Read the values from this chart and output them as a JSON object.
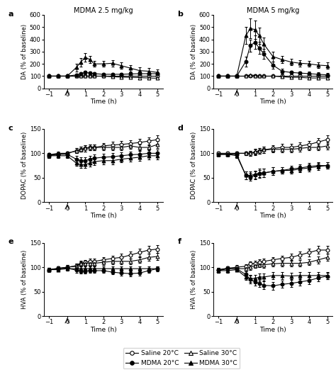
{
  "title_a": "MDMA 2.5 mg/kg",
  "title_b": "MDMA 5 mg/kg",
  "time_points": [
    -1,
    -0.5,
    0,
    0.5,
    0.75,
    1.0,
    1.25,
    1.5,
    2.0,
    2.5,
    3.0,
    3.5,
    4.0,
    4.5,
    5.0
  ],
  "panel_a": {
    "saline_20": [
      100,
      100,
      100,
      100,
      100,
      100,
      100,
      100,
      100,
      100,
      100,
      100,
      100,
      100,
      100
    ],
    "saline_20_err": [
      4,
      4,
      4,
      4,
      4,
      4,
      4,
      4,
      4,
      4,
      4,
      4,
      4,
      4,
      4
    ],
    "saline_30": [
      100,
      100,
      100,
      100,
      100,
      100,
      100,
      100,
      100,
      95,
      92,
      90,
      88,
      85,
      83
    ],
    "saline_30_err": [
      5,
      5,
      5,
      5,
      5,
      5,
      5,
      5,
      5,
      6,
      6,
      6,
      6,
      6,
      6
    ],
    "mdma_20": [
      100,
      100,
      100,
      110,
      120,
      130,
      125,
      120,
      115,
      115,
      115,
      118,
      120,
      120,
      120
    ],
    "mdma_20_err": [
      5,
      5,
      5,
      10,
      12,
      15,
      14,
      13,
      12,
      12,
      12,
      12,
      13,
      13,
      13
    ],
    "mdma_30": [
      100,
      100,
      100,
      170,
      215,
      255,
      235,
      200,
      200,
      205,
      185,
      165,
      145,
      140,
      130
    ],
    "mdma_30_err": [
      5,
      5,
      5,
      30,
      35,
      35,
      30,
      25,
      25,
      25,
      25,
      25,
      25,
      25,
      25
    ]
  },
  "panel_b": {
    "saline_20": [
      100,
      100,
      100,
      100,
      100,
      100,
      100,
      100,
      100,
      100,
      100,
      100,
      100,
      100,
      100
    ],
    "saline_20_err": [
      4,
      4,
      4,
      4,
      4,
      4,
      4,
      4,
      4,
      4,
      4,
      4,
      4,
      4,
      4
    ],
    "saline_30": [
      100,
      100,
      100,
      100,
      110,
      105,
      100,
      100,
      100,
      95,
      90,
      90,
      85,
      85,
      85
    ],
    "saline_30_err": [
      5,
      5,
      5,
      5,
      5,
      8,
      8,
      8,
      8,
      8,
      8,
      8,
      8,
      8,
      8
    ],
    "mdma_20": [
      100,
      100,
      100,
      220,
      350,
      375,
      330,
      280,
      190,
      140,
      130,
      125,
      120,
      115,
      110
    ],
    "mdma_20_err": [
      5,
      5,
      5,
      40,
      50,
      55,
      50,
      40,
      30,
      20,
      15,
      15,
      15,
      15,
      15
    ],
    "mdma_30": [
      100,
      100,
      100,
      430,
      490,
      480,
      430,
      360,
      260,
      235,
      215,
      205,
      200,
      190,
      185
    ],
    "mdma_30_err": [
      5,
      5,
      5,
      70,
      80,
      75,
      65,
      55,
      40,
      30,
      25,
      25,
      25,
      25,
      25
    ]
  },
  "panel_c": {
    "saline_20": [
      95,
      98,
      100,
      105,
      108,
      110,
      112,
      112,
      115,
      117,
      118,
      120,
      122,
      125,
      128
    ],
    "saline_20_err": [
      4,
      4,
      4,
      5,
      5,
      6,
      6,
      6,
      6,
      7,
      7,
      7,
      8,
      8,
      8
    ],
    "saline_30": [
      97,
      100,
      100,
      105,
      108,
      110,
      112,
      112,
      112,
      112,
      112,
      115,
      112,
      112,
      118
    ],
    "saline_30_err": [
      4,
      4,
      4,
      5,
      5,
      6,
      6,
      6,
      6,
      6,
      6,
      6,
      6,
      6,
      7
    ],
    "mdma_20": [
      97,
      98,
      98,
      88,
      85,
      85,
      88,
      90,
      92,
      93,
      95,
      97,
      98,
      100,
      100
    ],
    "mdma_20_err": [
      4,
      4,
      4,
      6,
      7,
      7,
      7,
      7,
      7,
      7,
      7,
      7,
      7,
      7,
      7
    ],
    "mdma_30": [
      95,
      95,
      95,
      80,
      77,
      77,
      80,
      83,
      85,
      85,
      88,
      90,
      92,
      95,
      95
    ],
    "mdma_30_err": [
      4,
      4,
      4,
      6,
      7,
      7,
      7,
      7,
      7,
      7,
      7,
      7,
      7,
      7,
      7
    ]
  },
  "panel_d": {
    "saline_20": [
      100,
      100,
      100,
      100,
      100,
      102,
      105,
      107,
      110,
      112,
      112,
      115,
      118,
      123,
      128
    ],
    "saline_20_err": [
      4,
      4,
      4,
      4,
      5,
      6,
      6,
      6,
      6,
      7,
      7,
      7,
      7,
      8,
      9
    ],
    "saline_30": [
      98,
      98,
      100,
      100,
      100,
      103,
      105,
      107,
      108,
      108,
      108,
      110,
      112,
      112,
      115
    ],
    "saline_30_err": [
      4,
      4,
      4,
      4,
      5,
      6,
      6,
      6,
      6,
      6,
      6,
      6,
      6,
      6,
      7
    ],
    "mdma_20": [
      98,
      98,
      98,
      55,
      52,
      55,
      58,
      60,
      63,
      65,
      68,
      70,
      73,
      75,
      75
    ],
    "mdma_20_err": [
      4,
      4,
      4,
      8,
      8,
      8,
      8,
      8,
      8,
      7,
      7,
      7,
      7,
      7,
      7
    ],
    "mdma_30": [
      98,
      98,
      95,
      55,
      55,
      57,
      60,
      60,
      63,
      65,
      65,
      68,
      70,
      73,
      75
    ],
    "mdma_30_err": [
      4,
      4,
      4,
      8,
      8,
      8,
      8,
      8,
      8,
      7,
      7,
      7,
      7,
      7,
      7
    ]
  },
  "panel_e": {
    "saline_20": [
      95,
      98,
      100,
      103,
      108,
      110,
      112,
      112,
      115,
      118,
      120,
      125,
      130,
      135,
      137
    ],
    "saline_20_err": [
      4,
      4,
      4,
      4,
      5,
      5,
      6,
      6,
      6,
      6,
      7,
      7,
      8,
      8,
      8
    ],
    "saline_30": [
      95,
      97,
      100,
      102,
      107,
      108,
      108,
      108,
      110,
      112,
      112,
      112,
      115,
      120,
      122
    ],
    "saline_30_err": [
      4,
      4,
      4,
      5,
      5,
      5,
      5,
      5,
      6,
      6,
      6,
      6,
      6,
      7,
      7
    ],
    "mdma_20": [
      95,
      97,
      98,
      94,
      92,
      92,
      93,
      93,
      93,
      90,
      88,
      87,
      88,
      93,
      97
    ],
    "mdma_20_err": [
      4,
      4,
      4,
      5,
      5,
      5,
      5,
      5,
      5,
      5,
      5,
      5,
      5,
      5,
      5
    ],
    "mdma_30": [
      95,
      95,
      97,
      97,
      97,
      97,
      97,
      97,
      97,
      97,
      97,
      97,
      97,
      97,
      97
    ],
    "mdma_30_err": [
      4,
      4,
      4,
      4,
      4,
      4,
      4,
      4,
      4,
      4,
      4,
      4,
      4,
      4,
      4
    ]
  },
  "panel_f": {
    "saline_20": [
      95,
      98,
      100,
      102,
      107,
      108,
      110,
      112,
      115,
      118,
      120,
      125,
      130,
      135,
      135
    ],
    "saline_20_err": [
      4,
      4,
      4,
      4,
      5,
      5,
      6,
      6,
      6,
      6,
      7,
      7,
      8,
      8,
      8
    ],
    "saline_30": [
      93,
      97,
      97,
      97,
      100,
      103,
      105,
      105,
      107,
      108,
      108,
      108,
      110,
      115,
      120
    ],
    "saline_30_err": [
      4,
      4,
      4,
      5,
      5,
      5,
      5,
      6,
      6,
      6,
      6,
      6,
      6,
      7,
      7
    ],
    "mdma_20": [
      95,
      97,
      97,
      85,
      75,
      70,
      67,
      63,
      62,
      65,
      67,
      70,
      73,
      78,
      82
    ],
    "mdma_20_err": [
      4,
      4,
      4,
      7,
      8,
      8,
      8,
      8,
      8,
      7,
      7,
      7,
      7,
      7,
      7
    ],
    "mdma_30": [
      93,
      93,
      95,
      80,
      77,
      77,
      80,
      80,
      83,
      83,
      82,
      83,
      83,
      83,
      83
    ],
    "mdma_30_err": [
      4,
      4,
      4,
      6,
      7,
      7,
      7,
      7,
      7,
      7,
      7,
      7,
      7,
      7,
      7
    ]
  },
  "legend": {
    "saline_20": "Saline 20°C",
    "saline_30": "Saline 30°C",
    "mdma_20": "MDMA 20°C",
    "mdma_30": "MDMA 30°C"
  },
  "ylabel_da": "DA (% of baseline)",
  "ylabel_dopac": "DOPAC (% of baseline)",
  "ylabel_hva": "HVA (% of baseline)",
  "xlabel": "Time (h)"
}
